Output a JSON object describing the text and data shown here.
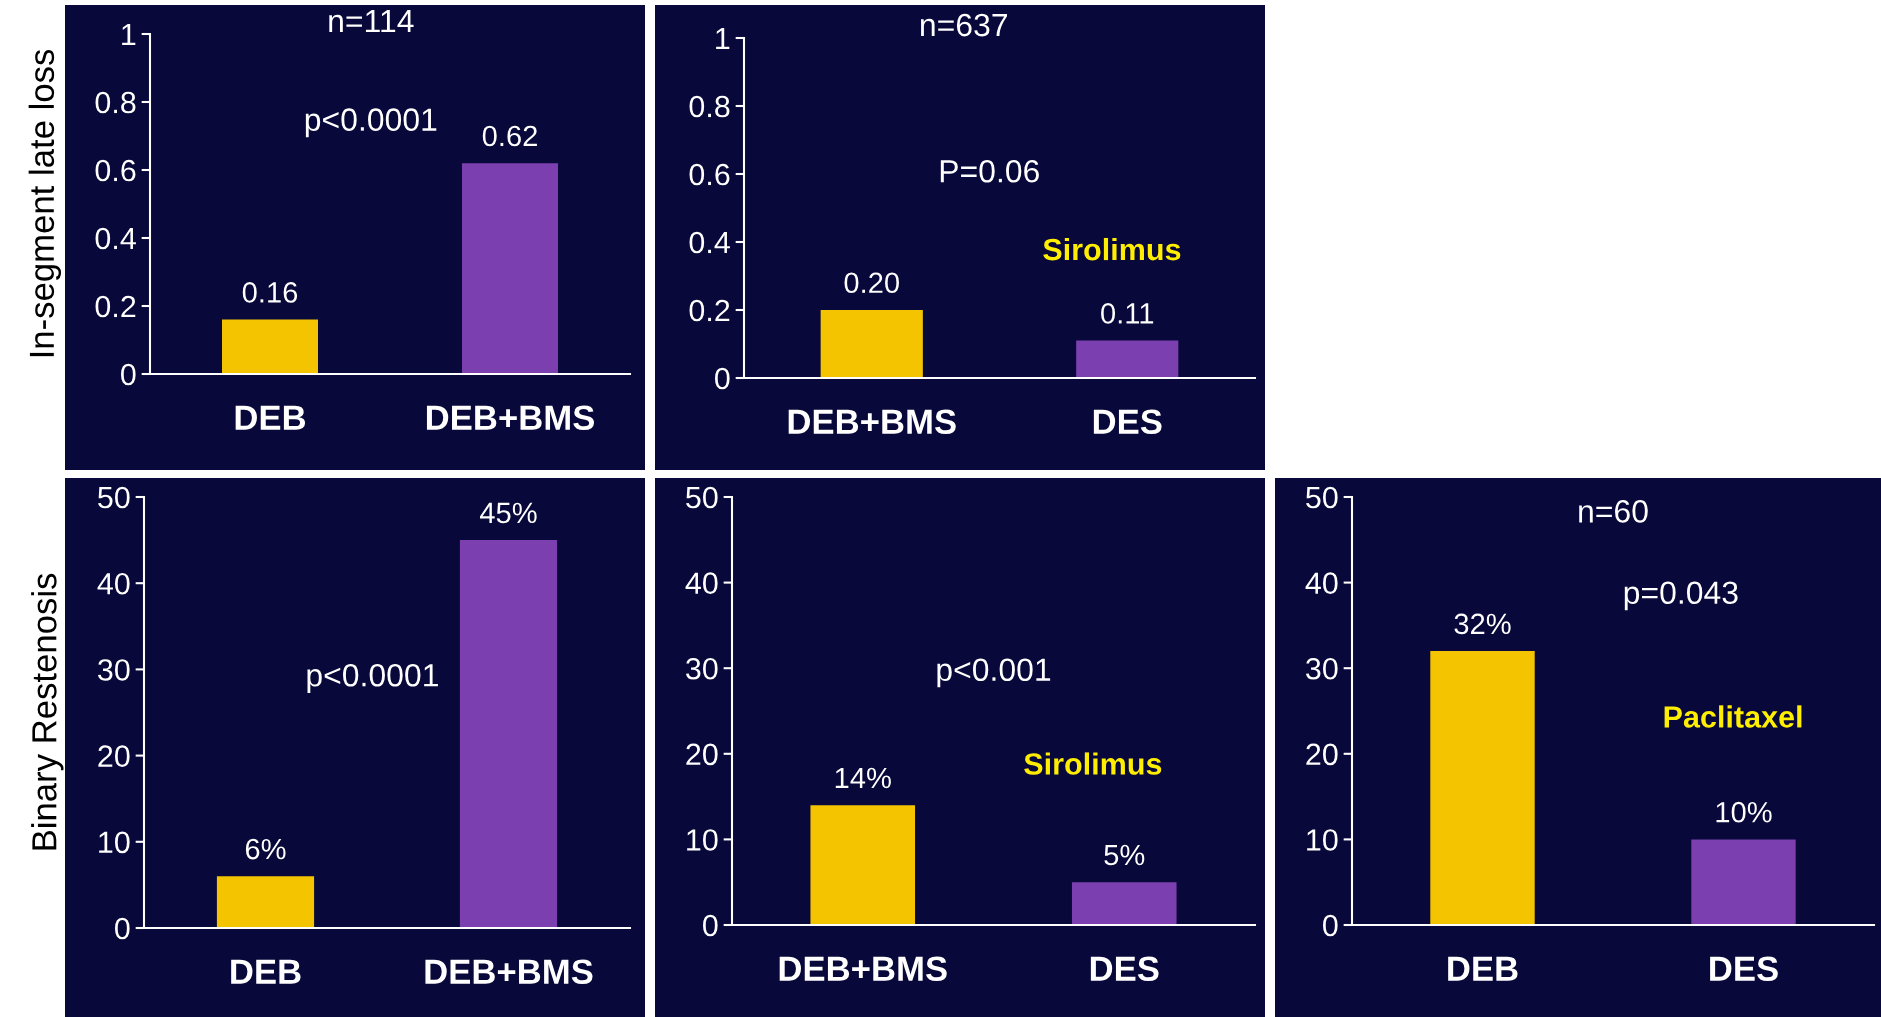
{
  "chart_data": [
    {
      "type": "bar",
      "ylabel": "In-segment late loss",
      "categories": [
        "DEB",
        "DEB+BMS"
      ],
      "values": [
        0.16,
        0.62
      ],
      "colors": [
        "#f5c400",
        "#7b3fb0"
      ],
      "value_labels": [
        "0.16",
        "0.62"
      ],
      "ylim": [
        0,
        1
      ],
      "yticks": [
        0,
        0.2,
        0.4,
        0.6,
        0.8,
        1
      ],
      "annotations": [
        "n=114",
        "p<0.0001"
      ]
    },
    {
      "type": "bar",
      "categories": [
        "DEB+BMS",
        "DES"
      ],
      "values": [
        0.2,
        0.11
      ],
      "colors": [
        "#f5c400",
        "#7b3fb0"
      ],
      "value_labels": [
        "0.20",
        "0.11"
      ],
      "ylim": [
        0,
        1
      ],
      "yticks": [
        0,
        0.2,
        0.4,
        0.6,
        0.8,
        1
      ],
      "annotations": [
        "n=637",
        "P=0.06",
        "Sirolimus"
      ]
    },
    {
      "type": "bar",
      "ylabel": "Binary Restenosis",
      "categories": [
        "DEB",
        "DEB+BMS"
      ],
      "values": [
        6,
        45
      ],
      "colors": [
        "#f5c400",
        "#7b3fb0"
      ],
      "value_labels": [
        "6%",
        "45%"
      ],
      "ylim": [
        0,
        50
      ],
      "yticks": [
        0,
        10,
        20,
        30,
        40,
        50
      ],
      "annotations": [
        "p<0.0001"
      ]
    },
    {
      "type": "bar",
      "categories": [
        "DEB+BMS",
        "DES"
      ],
      "values": [
        14,
        5
      ],
      "colors": [
        "#f5c400",
        "#7b3fb0"
      ],
      "value_labels": [
        "14%",
        "5%"
      ],
      "ylim": [
        0,
        50
      ],
      "yticks": [
        0,
        10,
        20,
        30,
        40,
        50
      ],
      "annotations": [
        "p<0.001",
        "Sirolimus"
      ]
    },
    {
      "type": "bar",
      "categories": [
        "DEB",
        "DES"
      ],
      "values": [
        32,
        10
      ],
      "colors": [
        "#f5c400",
        "#7b3fb0"
      ],
      "value_labels": [
        "32%",
        "10%"
      ],
      "ylim": [
        0,
        50
      ],
      "yticks": [
        0,
        10,
        20,
        30,
        40,
        50
      ],
      "annotations": [
        "n=60",
        "p=0.043",
        "Paclitaxel"
      ]
    }
  ]
}
